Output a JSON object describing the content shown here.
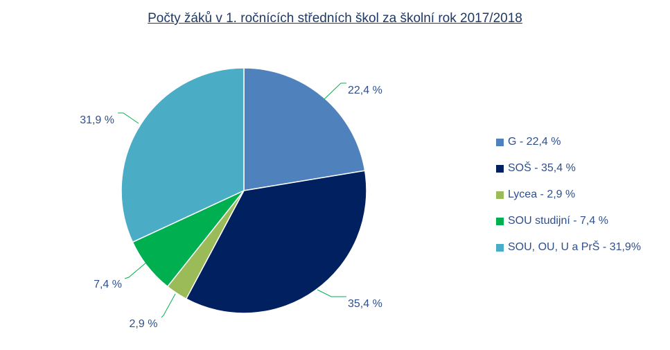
{
  "chart_data": {
    "type": "pie",
    "title": "Počty žáků v 1. ročnících středních škol za školní rok 2017/2018",
    "legend_position": "right",
    "slices": [
      {
        "name": "G",
        "legend": "G - 22,4 %",
        "value": 22.4,
        "label": "22,4 %",
        "color": "#4f81bd"
      },
      {
        "name": "SOŠ",
        "legend": "SOŠ - 35,4 %",
        "value": 35.4,
        "label": "35,4 %",
        "color": "#002060"
      },
      {
        "name": "Lycea",
        "legend": "Lycea - 2,9 %",
        "value": 2.9,
        "label": "2,9 %",
        "color": "#9bbb59"
      },
      {
        "name": "SOU studijní",
        "legend": "SOU studijní - 7,4 %",
        "value": 7.4,
        "label": "7,4 %",
        "color": "#00b050"
      },
      {
        "name": "SOU, OU, U a PrŠ",
        "legend": "SOU, OU, U a PrŠ - 31,9%",
        "value": 31.9,
        "label": "31,9 %",
        "color": "#4bacc6"
      }
    ],
    "leader_line_color": "#00b050"
  }
}
